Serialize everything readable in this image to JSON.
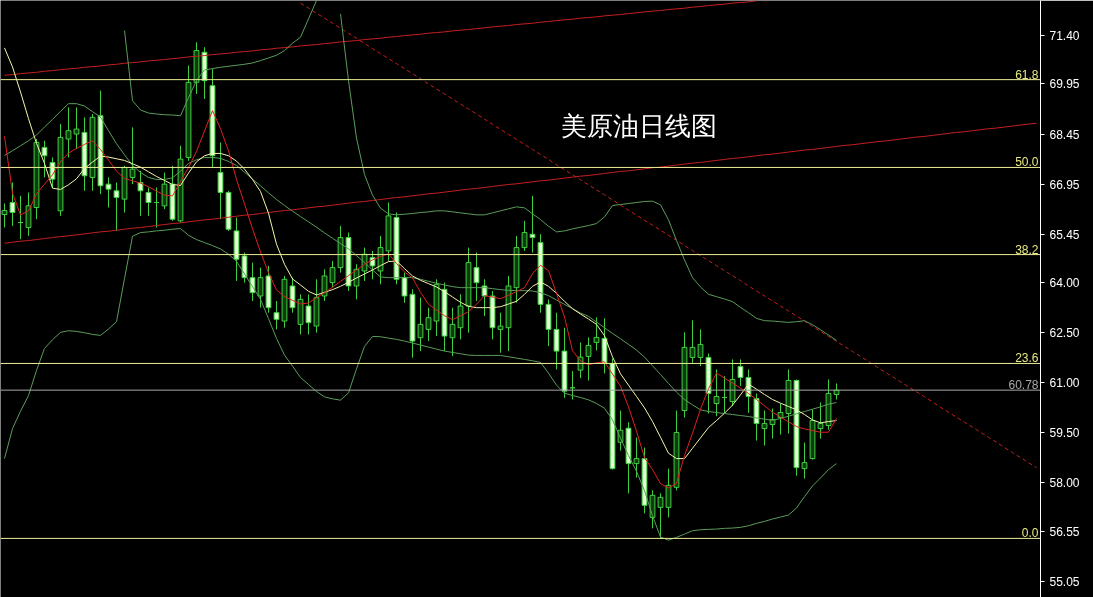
{
  "chart_data": {
    "type": "candlestick",
    "title": "美原油日线图",
    "color": "#3fd03f",
    "categories": [
      null,
      null,
      null,
      null,
      null,
      null,
      null,
      null,
      null,
      null,
      null,
      null,
      null,
      null,
      null,
      null,
      null,
      null,
      null,
      null,
      null,
      null,
      null,
      null,
      null,
      null,
      null,
      null,
      null,
      null,
      null,
      null,
      null,
      null,
      null,
      null,
      null,
      null,
      null,
      null,
      null,
      null,
      null,
      null,
      null,
      null,
      null,
      null,
      null,
      null,
      null,
      null,
      null,
      null,
      null,
      null,
      null,
      null,
      null,
      null,
      null,
      null,
      null,
      null,
      null,
      null,
      null,
      null,
      null,
      null,
      null,
      null,
      null,
      null,
      null,
      null,
      null,
      null,
      null,
      null,
      null,
      null,
      null,
      null,
      null,
      null,
      null,
      null,
      null,
      null,
      null,
      null,
      null,
      null,
      null,
      null,
      null,
      null,
      null,
      null,
      null,
      null,
      null,
      null,
      null,
      null,
      null,
      null,
      null,
      null,
      null,
      null,
      null,
      null,
      null,
      null,
      null,
      null,
      null,
      null,
      null,
      null,
      null,
      null,
      null,
      null,
      null,
      null,
      null,
      null
    ],
    "ohlc": [
      [
        66.04,
        66.37,
        65.65,
        66.16
      ],
      [
        66.4,
        67.0,
        65.7,
        66.1
      ],
      [
        65.8,
        66.6,
        65.3,
        65.8
      ],
      [
        65.65,
        66.7,
        65.4,
        66.3
      ],
      [
        66.25,
        68.3,
        65.9,
        68.2
      ],
      [
        68.05,
        68.25,
        67.15,
        67.8
      ],
      [
        67.6,
        67.75,
        66.85,
        67.1
      ],
      [
        66.15,
        68.75,
        66.0,
        68.35
      ],
      [
        68.3,
        69.25,
        67.75,
        68.55
      ],
      [
        68.45,
        69.25,
        68.0,
        68.6
      ],
      [
        68.5,
        68.95,
        66.75,
        67.2
      ],
      [
        67.15,
        69.05,
        66.75,
        68.95
      ],
      [
        69.0,
        69.75,
        66.65,
        66.9
      ],
      [
        66.95,
        67.15,
        66.25,
        66.8
      ],
      [
        66.75,
        67.0,
        65.55,
        66.55
      ],
      [
        66.5,
        67.5,
        66.1,
        67.45
      ],
      [
        67.15,
        68.65,
        66.95,
        67.4
      ],
      [
        67.0,
        67.35,
        66.0,
        66.75
      ],
      [
        66.7,
        66.85,
        66.0,
        66.4
      ],
      [
        66.4,
        66.85,
        65.65,
        66.4
      ],
      [
        66.3,
        67.3,
        66.2,
        66.95
      ],
      [
        66.95,
        67.5,
        65.85,
        65.9
      ],
      [
        65.85,
        68.1,
        65.8,
        67.7
      ],
      [
        67.75,
        70.5,
        67.65,
        70.0
      ],
      [
        70.0,
        71.2,
        69.65,
        70.95
      ],
      [
        70.9,
        71.05,
        69.5,
        70.05
      ],
      [
        69.9,
        70.4,
        67.45,
        67.8
      ],
      [
        67.3,
        68.2,
        65.9,
        66.7
      ],
      [
        66.7,
        66.75,
        65.55,
        65.6
      ],
      [
        65.55,
        65.95,
        64.05,
        64.7
      ],
      [
        64.8,
        64.9,
        64.0,
        64.15
      ],
      [
        64.15,
        64.6,
        63.45,
        63.7
      ],
      [
        63.6,
        64.45,
        63.25,
        64.15
      ],
      [
        64.2,
        64.5,
        63.1,
        63.25
      ],
      [
        63.1,
        63.45,
        62.6,
        62.9
      ],
      [
        62.85,
        64.2,
        62.65,
        64.1
      ],
      [
        63.9,
        64.15,
        63.1,
        63.25
      ],
      [
        62.75,
        63.65,
        62.45,
        63.5
      ],
      [
        63.3,
        63.65,
        62.45,
        62.8
      ],
      [
        62.7,
        64.1,
        62.5,
        63.55
      ],
      [
        63.6,
        64.4,
        63.45,
        64.2
      ],
      [
        64.0,
        64.65,
        63.85,
        64.45
      ],
      [
        64.45,
        65.7,
        64.3,
        65.35
      ],
      [
        65.35,
        65.5,
        63.75,
        63.9
      ],
      [
        63.9,
        64.55,
        63.5,
        64.4
      ],
      [
        64.35,
        65.05,
        64.05,
        64.85
      ],
      [
        64.75,
        64.95,
        64.1,
        64.5
      ],
      [
        64.35,
        65.4,
        63.95,
        65.05
      ],
      [
        64.95,
        66.4,
        64.65,
        66.0
      ],
      [
        65.95,
        66.1,
        63.95,
        64.1
      ],
      [
        64.15,
        64.3,
        63.4,
        63.6
      ],
      [
        63.65,
        63.8,
        61.75,
        62.25
      ],
      [
        62.35,
        63.55,
        61.95,
        62.75
      ],
      [
        62.6,
        63.25,
        62.25,
        62.95
      ],
      [
        62.85,
        64.1,
        62.4,
        63.95
      ],
      [
        63.8,
        64.0,
        61.95,
        62.4
      ],
      [
        62.35,
        63.25,
        61.8,
        62.75
      ],
      [
        62.65,
        63.65,
        62.3,
        63.3
      ],
      [
        63.3,
        65.05,
        62.5,
        64.6
      ],
      [
        64.45,
        64.9,
        63.45,
        64.0
      ],
      [
        63.9,
        64.1,
        63.0,
        63.6
      ],
      [
        63.6,
        63.75,
        62.3,
        62.65
      ],
      [
        62.6,
        63.1,
        61.9,
        62.7
      ],
      [
        62.65,
        64.2,
        61.95,
        63.9
      ],
      [
        63.85,
        65.4,
        63.4,
        65.05
      ],
      [
        65.05,
        65.85,
        64.95,
        65.5
      ],
      [
        65.45,
        66.6,
        64.9,
        65.35
      ],
      [
        65.2,
        65.45,
        63.1,
        63.35
      ],
      [
        63.35,
        63.5,
        62.1,
        62.6
      ],
      [
        62.6,
        63.1,
        61.4,
        61.95
      ],
      [
        61.95,
        62.65,
        60.55,
        60.75
      ],
      [
        60.85,
        61.35,
        60.5,
        60.85
      ],
      [
        61.38,
        62.21,
        61.14,
        61.77
      ],
      [
        61.79,
        62.36,
        61.07,
        62.12
      ],
      [
        62.21,
        62.96,
        61.97,
        62.36
      ],
      [
        62.33,
        62.93,
        61.28,
        61.58
      ],
      [
        61.58,
        61.73,
        58.4,
        58.43
      ],
      [
        59.22,
        60.17,
        58.97,
        59.58
      ],
      [
        59.64,
        59.82,
        57.69,
        58.58
      ],
      [
        58.58,
        59.36,
        58.16,
        58.73
      ],
      [
        58.73,
        59.06,
        57.09,
        57.33
      ],
      [
        56.97,
        57.78,
        56.64,
        57.63
      ],
      [
        57.27,
        57.69,
        56.34,
        57.57
      ],
      [
        57.27,
        58.43,
        56.97,
        57.93
      ],
      [
        57.87,
        60.17,
        57.78,
        59.51
      ],
      [
        60.17,
        62.51,
        59.96,
        62.06
      ],
      [
        61.76,
        62.87,
        61.58,
        62.06
      ],
      [
        61.76,
        62.6,
        61.5,
        62.15
      ],
      [
        61.76,
        61.88,
        60.08,
        60.68
      ],
      [
        60.38,
        61.4,
        60.0,
        60.59
      ],
      [
        60.56,
        61.2,
        60.1,
        60.56
      ],
      [
        60.44,
        61.7,
        60.3,
        61.1
      ],
      [
        61.49,
        61.7,
        60.9,
        61.16
      ],
      [
        61.16,
        61.4,
        60.1,
        60.59
      ],
      [
        60.53,
        60.68,
        59.27,
        59.78
      ],
      [
        59.63,
        60.17,
        59.12,
        59.78
      ],
      [
        59.75,
        60.23,
        59.33,
        59.9
      ],
      [
        59.96,
        60.38,
        59.45,
        60.11
      ],
      [
        60.08,
        61.4,
        59.48,
        61.07
      ],
      [
        61.07,
        61.1,
        58.22,
        58.46
      ],
      [
        58.43,
        59.21,
        58.13,
        58.61
      ],
      [
        58.73,
        60.2,
        58.7,
        59.87
      ],
      [
        59.63,
        60.41,
        59.33,
        59.78
      ],
      [
        59.72,
        61.1,
        59.6,
        60.68
      ],
      [
        60.65,
        60.98,
        60.5,
        60.78
      ],
      null,
      null,
      null,
      null,
      null,
      null,
      null,
      null,
      null,
      null,
      null,
      null,
      null,
      null,
      null,
      null,
      null,
      null,
      null,
      null,
      null,
      null,
      null,
      null,
      null
    ],
    "series": [
      {
        "type": "line",
        "color": "#c81e1e",
        "line_style": "solid",
        "values": [
          70.21,
          70.23,
          70.26,
          70.28,
          70.3,
          70.33,
          70.35,
          70.38,
          70.4,
          70.42,
          70.45,
          70.47,
          70.49,
          70.52,
          70.54,
          70.57,
          70.59,
          70.61,
          70.64,
          70.66,
          70.68,
          70.71,
          70.73,
          70.76,
          70.78,
          70.8,
          70.83,
          70.85,
          70.87,
          70.9,
          70.92,
          70.94,
          70.97,
          70.99,
          71.02,
          71.04,
          71.06,
          71.09,
          71.11,
          71.13,
          71.16,
          71.18,
          71.21,
          71.23,
          71.25,
          71.28,
          71.3,
          71.32,
          71.35,
          71.37,
          71.4,
          71.42,
          71.44,
          71.47,
          71.49,
          71.51,
          71.54,
          71.56,
          71.58,
          71.61,
          71.63,
          71.66,
          71.68,
          71.7,
          71.73,
          71.75,
          71.77,
          71.8,
          71.82,
          71.85,
          71.87,
          71.89,
          71.92,
          71.94,
          71.96,
          71.99,
          72.01,
          72.03,
          72.06,
          72.08,
          72.11,
          72.13,
          72.15,
          72.18,
          72.2,
          72.22,
          72.25,
          72.27,
          72.3,
          72.32,
          72.34,
          72.37,
          72.39,
          72.41,
          72.44,
          null,
          null,
          null,
          null,
          null,
          null,
          null,
          null,
          null,
          null,
          null,
          null,
          null,
          null,
          null,
          null,
          null,
          null,
          null,
          null,
          null,
          null,
          null,
          null,
          null,
          null,
          null,
          null,
          null,
          null,
          null,
          null,
          null,
          null,
          null
        ]
      },
      {
        "type": "line",
        "color": "#c81e1e",
        "line_style": "solid",
        "values": [
          65.18,
          65.21,
          65.24,
          65.26,
          65.29,
          65.32,
          65.35,
          65.38,
          65.4,
          65.43,
          65.46,
          65.49,
          65.52,
          65.54,
          65.57,
          65.6,
          65.63,
          65.65,
          65.68,
          65.71,
          65.74,
          65.77,
          65.79,
          65.82,
          65.85,
          65.88,
          65.9,
          65.93,
          65.96,
          65.99,
          66.02,
          66.04,
          66.07,
          66.1,
          66.13,
          66.16,
          66.18,
          66.21,
          66.24,
          66.27,
          66.29,
          66.32,
          66.35,
          66.38,
          66.41,
          66.43,
          66.46,
          66.49,
          66.52,
          66.55,
          66.57,
          66.6,
          66.63,
          66.66,
          66.68,
          66.71,
          66.74,
          66.77,
          66.8,
          66.82,
          66.85,
          66.88,
          66.91,
          66.94,
          66.96,
          66.99,
          67.02,
          67.05,
          67.07,
          67.1,
          67.13,
          67.16,
          67.19,
          67.21,
          67.24,
          67.27,
          67.3,
          67.33,
          67.35,
          67.38,
          67.41,
          67.44,
          67.46,
          67.49,
          67.52,
          67.55,
          67.58,
          67.6,
          67.63,
          67.66,
          67.69,
          67.72,
          67.74,
          67.77,
          67.8,
          67.83,
          67.85,
          67.88,
          67.91,
          67.94,
          67.97,
          67.99,
          68.02,
          68.05,
          68.08,
          68.11,
          68.13,
          68.16,
          68.19,
          68.22,
          68.24,
          68.27,
          68.3,
          68.33,
          68.36,
          68.38,
          68.41,
          68.44,
          68.47,
          68.5,
          68.52,
          68.55,
          68.58,
          68.61,
          68.63,
          68.66,
          68.69,
          68.72,
          68.75,
          68.77
        ]
      },
      {
        "type": "line",
        "color": "#c81e1e",
        "line_style": "dashed",
        "values": [
          null,
          null,
          null,
          null,
          null,
          null,
          null,
          null,
          null,
          null,
          null,
          null,
          null,
          null,
          null,
          null,
          null,
          null,
          null,
          null,
          null,
          null,
          null,
          null,
          null,
          null,
          null,
          null,
          null,
          null,
          null,
          null,
          null,
          null,
          null,
          null,
          null,
          72.37,
          72.22,
          72.07,
          71.92,
          71.77,
          71.62,
          71.47,
          71.32,
          71.16,
          71.01,
          70.86,
          70.71,
          70.56,
          70.41,
          70.26,
          70.11,
          69.95,
          69.8,
          69.65,
          69.5,
          69.35,
          69.2,
          69.05,
          68.9,
          68.74,
          68.59,
          68.44,
          68.29,
          68.14,
          67.99,
          67.84,
          67.69,
          67.53,
          67.38,
          67.23,
          67.08,
          66.93,
          66.78,
          66.63,
          66.48,
          66.32,
          66.17,
          66.02,
          65.87,
          65.72,
          65.57,
          65.42,
          65.27,
          65.11,
          64.96,
          64.81,
          64.66,
          64.51,
          64.36,
          64.21,
          64.06,
          63.9,
          63.75,
          63.6,
          63.45,
          63.3,
          63.15,
          63.0,
          62.85,
          62.69,
          62.54,
          62.39,
          62.24,
          62.09,
          61.94,
          61.79,
          61.64,
          61.48,
          61.33,
          61.18,
          61.03,
          60.88,
          60.73,
          60.58,
          60.43,
          60.27,
          60.12,
          59.97,
          59.82,
          59.67,
          59.52,
          59.37,
          59.22,
          59.06,
          58.91,
          58.76,
          58.61,
          58.46
        ]
      },
      {
        "type": "line",
        "color": "#5a9d5a",
        "line_style": "solid",
        "values": [
          null,
          null,
          null,
          null,
          null,
          null,
          null,
          null,
          null,
          null,
          null,
          null,
          null,
          null,
          null,
          71.55,
          69.45,
          69.17,
          69.08,
          69.05,
          69.03,
          69.02,
          69.0,
          69.54,
          70.05,
          70.37,
          70.41,
          70.45,
          70.48,
          70.51,
          70.54,
          70.58,
          70.65,
          70.73,
          70.81,
          70.95,
          71.17,
          71.35,
          71.9,
          72.45,
          null,
          null,
          72.05,
          70.05,
          68.33,
          67.24,
          66.62,
          66.23,
          66.06,
          66.03,
          66.05,
          66.07,
          66.1,
          66.12,
          66.15,
          66.15,
          66.12,
          66.09,
          66.06,
          66.03,
          66.03,
          66.09,
          66.15,
          66.21,
          66.27,
          66.24,
          66.06,
          65.89,
          65.69,
          65.52,
          65.55,
          65.61,
          65.66,
          65.71,
          65.77,
          65.97,
          66.31,
          66.34,
          66.37,
          66.4,
          66.43,
          66.44,
          66.33,
          65.88,
          65.26,
          64.68,
          64.15,
          63.87,
          63.65,
          63.58,
          63.51,
          63.43,
          63.26,
          63.1,
          62.93,
          62.86,
          62.85,
          62.83,
          62.81,
          62.83,
          62.86,
          62.74,
          62.59,
          62.43,
          62.27,
          null,
          null,
          null,
          null,
          null,
          null,
          null,
          null,
          null,
          null,
          null,
          null,
          null,
          null,
          null,
          null,
          null,
          null,
          null,
          null,
          null,
          null,
          null,
          null,
          null
        ]
      },
      {
        "type": "line",
        "color": "#5a9d5a",
        "line_style": "solid",
        "values": [
          67.81,
          67.95,
          68.1,
          68.25,
          68.42,
          68.66,
          68.89,
          69.13,
          69.36,
          69.36,
          69.29,
          69.12,
          68.96,
          68.55,
          68.16,
          67.83,
          67.51,
          67.3,
          67.15,
          67.09,
          67.09,
          67.14,
          67.34,
          67.57,
          67.68,
          67.75,
          67.75,
          67.72,
          67.63,
          67.51,
          67.31,
          67.1,
          66.9,
          66.69,
          66.49,
          66.31,
          66.14,
          65.98,
          65.82,
          65.66,
          65.49,
          65.33,
          65.17,
          65.01,
          64.81,
          64.6,
          64.38,
          64.17,
          64.15,
          64.15,
          64.15,
          64.15,
          64.1,
          64.04,
          63.98,
          63.93,
          63.88,
          63.85,
          63.85,
          63.85,
          63.85,
          63.82,
          63.79,
          63.77,
          63.76,
          63.76,
          63.75,
          63.7,
          63.61,
          63.48,
          63.35,
          63.22,
          63.09,
          62.99,
          62.82,
          62.65,
          62.48,
          62.32,
          62.15,
          61.98,
          61.77,
          61.51,
          61.25,
          60.98,
          60.72,
          60.5,
          60.34,
          60.19,
          60.14,
          60.11,
          60.08,
          60.05,
          60.02,
          59.99,
          59.95,
          59.91,
          59.88,
          59.93,
          60.0,
          60.07,
          60.14,
          60.21,
          60.28,
          60.36,
          60.41,
          null,
          null,
          null,
          null,
          null,
          null,
          null,
          null,
          null,
          null,
          null,
          null,
          null,
          null,
          null,
          null,
          null,
          null,
          null,
          null,
          null,
          null,
          null,
          null,
          null
        ]
      },
      {
        "type": "line",
        "color": "#5a9d5a",
        "line_style": "solid",
        "values": [
          58.73,
          59.63,
          60.15,
          60.62,
          61.37,
          62.03,
          62.29,
          62.51,
          62.56,
          62.54,
          62.5,
          62.45,
          62.42,
          62.61,
          62.83,
          64.12,
          65.39,
          65.5,
          65.52,
          65.55,
          65.57,
          65.6,
          65.62,
          65.42,
          65.29,
          65.2,
          65.11,
          65.01,
          64.85,
          64.64,
          64.26,
          63.88,
          63.5,
          62.92,
          62.33,
          61.83,
          61.5,
          61.16,
          60.95,
          60.74,
          60.58,
          60.52,
          60.48,
          60.7,
          61.42,
          62.09,
          62.39,
          62.38,
          62.34,
          62.3,
          62.25,
          62.19,
          62.13,
          62.07,
          62.01,
          61.95,
          61.91,
          61.87,
          61.83,
          61.82,
          61.82,
          61.82,
          61.82,
          61.78,
          61.74,
          61.7,
          61.66,
          61.61,
          61.29,
          60.93,
          60.69,
          60.62,
          60.56,
          60.49,
          60.38,
          60.24,
          59.89,
          59.34,
          58.82,
          58.35,
          57.77,
          57.02,
          56.38,
          56.29,
          56.37,
          56.47,
          56.57,
          56.6,
          56.61,
          56.62,
          56.64,
          56.65,
          56.67,
          56.72,
          56.79,
          56.85,
          56.92,
          56.98,
          57.04,
          57.25,
          57.59,
          57.91,
          58.15,
          58.4,
          58.58,
          null,
          null,
          null,
          null,
          null,
          null,
          null,
          null,
          null,
          null,
          null,
          null,
          null,
          null,
          null,
          null,
          null,
          null,
          null,
          null,
          null,
          null,
          null,
          null,
          null
        ]
      },
      {
        "type": "line",
        "color": "#f5f5a8",
        "line_style": "solid",
        "values": [
          71.03,
          70.46,
          69.71,
          68.91,
          68.17,
          67.57,
          66.83,
          66.79,
          66.93,
          67.11,
          67.42,
          67.61,
          67.79,
          67.76,
          67.71,
          67.66,
          67.56,
          67.46,
          67.32,
          67.18,
          67.06,
          66.94,
          66.91,
          67.28,
          67.62,
          67.8,
          67.87,
          67.87,
          67.8,
          67.64,
          67.4,
          67.09,
          66.73,
          66.08,
          65.15,
          64.55,
          64.11,
          63.93,
          63.74,
          63.63,
          63.71,
          63.79,
          63.89,
          64.01,
          64.14,
          64.26,
          64.38,
          64.51,
          64.63,
          64.65,
          64.42,
          64.2,
          64.07,
          63.97,
          63.87,
          63.73,
          63.57,
          63.41,
          63.29,
          63.25,
          63.25,
          63.25,
          63.28,
          63.36,
          63.44,
          63.65,
          63.89,
          64.02,
          63.89,
          63.68,
          63.44,
          63.22,
          63.06,
          62.91,
          62.75,
          62.41,
          61.78,
          61.27,
          60.93,
          60.59,
          60.25,
          59.84,
          59.37,
          58.89,
          58.73,
          58.73,
          59.04,
          59.35,
          59.66,
          59.87,
          60.09,
          60.33,
          60.64,
          60.96,
          60.81,
          60.65,
          60.5,
          60.39,
          60.29,
          60.19,
          60.05,
          59.89,
          59.8,
          59.84,
          59.87,
          null,
          null,
          null,
          null,
          null,
          null,
          null,
          null,
          null,
          null,
          null,
          null,
          null,
          null,
          null,
          null,
          null,
          null,
          null,
          null,
          null,
          null,
          null,
          null,
          null
        ]
      },
      {
        "type": "line",
        "color": "#e02020",
        "line_style": "solid",
        "values": [
          68.38,
          66.68,
          66.03,
          66.15,
          66.66,
          66.95,
          67.23,
          67.62,
          67.88,
          68.02,
          68.14,
          68.25,
          67.99,
          67.67,
          67.34,
          67.12,
          67.05,
          66.98,
          66.87,
          66.74,
          66.62,
          66.6,
          67.03,
          67.45,
          67.93,
          68.54,
          69.15,
          68.61,
          67.95,
          67.09,
          66.36,
          65.61,
          64.92,
          64.3,
          63.78,
          63.58,
          63.47,
          63.36,
          63.39,
          63.55,
          63.7,
          63.86,
          64.04,
          64.21,
          64.38,
          64.55,
          64.68,
          64.78,
          64.87,
          64.57,
          64.32,
          64.14,
          63.71,
          63.35,
          63.18,
          63.01,
          62.89,
          63.01,
          63.13,
          63.35,
          63.61,
          63.57,
          63.52,
          63.62,
          63.73,
          63.85,
          64.27,
          64.52,
          64.36,
          63.68,
          62.97,
          61.96,
          61.66,
          61.54,
          61.6,
          61.63,
          61.26,
          60.9,
          60.28,
          59.55,
          58.76,
          58.4,
          57.98,
          57.85,
          57.99,
          58.82,
          59.49,
          60.21,
          60.82,
          61.29,
          61.14,
          60.99,
          60.84,
          60.68,
          60.5,
          60.31,
          60.12,
          59.97,
          59.83,
          59.69,
          59.62,
          59.57,
          59.52,
          59.52,
          59.93,
          null,
          null,
          null,
          null,
          null,
          null,
          null,
          null,
          null,
          null,
          null,
          null,
          null,
          null,
          null,
          null,
          null,
          null,
          null,
          null,
          null,
          null,
          null,
          null,
          null
        ]
      }
    ],
    "ref_lines": [
      {
        "axis": "y",
        "value": 70.08,
        "color": "#eeee99"
      },
      {
        "axis": "y",
        "value": 67.45,
        "color": "#eeee99"
      },
      {
        "axis": "y",
        "value": 64.84,
        "color": "#eeee99"
      },
      {
        "axis": "y",
        "value": 61.58,
        "color": "#eeee99"
      },
      {
        "axis": "y",
        "value": 60.78,
        "label": "60.78",
        "color": "#a8a8a8"
      },
      {
        "axis": "y",
        "value": 56.34,
        "color": "#eeee99"
      }
    ],
    "annotations": [
      {
        "text": "61.8",
        "y": 70.08
      },
      {
        "text": "50.0",
        "y": 67.45
      },
      {
        "text": "38.2",
        "y": 64.84
      },
      {
        "text": "23.6",
        "y": 61.58
      },
      {
        "text": "0.0",
        "y": 56.34
      }
    ],
    "ylim": [
      54.57,
      72.45
    ],
    "yticks": [
      {
        "value": 71.4,
        "label": "71.40"
      },
      69.95,
      68.45,
      66.95,
      65.45,
      {
        "value": 64.0,
        "label": "64.00"
      },
      {
        "value": 62.5,
        "label": "62.50"
      },
      {
        "value": 61.0,
        "label": "61.00"
      },
      {
        "value": 59.5,
        "label": "59.50"
      },
      {
        "value": 58.0,
        "label": "58.00"
      },
      56.55,
      55.05
    ],
    "tick_labels": "y",
    "grid": false
  }
}
